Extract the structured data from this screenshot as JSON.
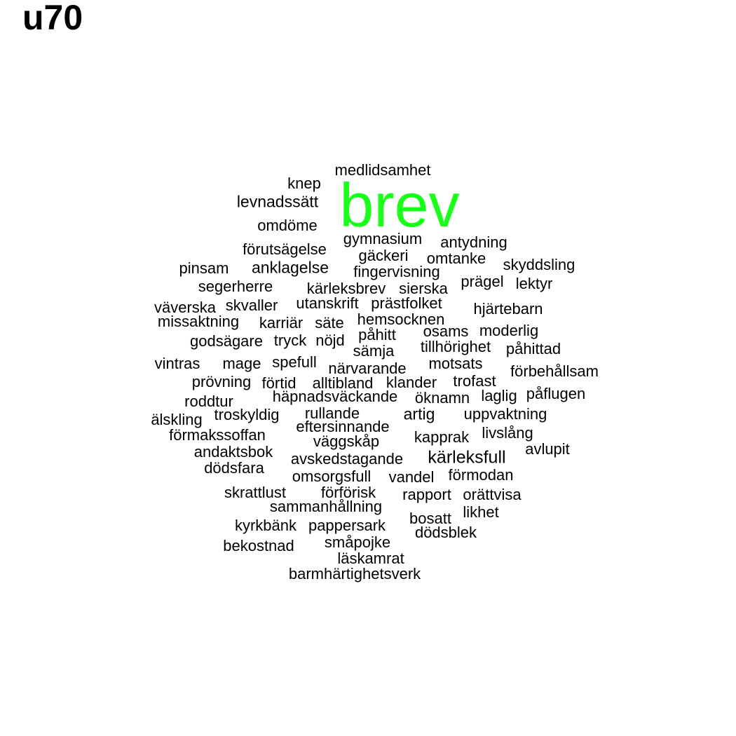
{
  "title": "u70",
  "highlight_color": "#1aff1a",
  "text_color": "#000000",
  "words": [
    {
      "text": "brev",
      "highlight": true
    },
    {
      "text": "medlidsamhet"
    },
    {
      "text": "knep"
    },
    {
      "text": "levnadssätt"
    },
    {
      "text": "omdöme"
    },
    {
      "text": "gymnasium"
    },
    {
      "text": "antydning"
    },
    {
      "text": "förutsägelse"
    },
    {
      "text": "gäckeri"
    },
    {
      "text": "omtanke"
    },
    {
      "text": "pinsam"
    },
    {
      "text": "anklagelse"
    },
    {
      "text": "fingervisning"
    },
    {
      "text": "skyddsling"
    },
    {
      "text": "segerherre"
    },
    {
      "text": "prägel"
    },
    {
      "text": "lektyr"
    },
    {
      "text": "kärleksbrev"
    },
    {
      "text": "sierska"
    },
    {
      "text": "väverska"
    },
    {
      "text": "skvaller"
    },
    {
      "text": "utanskrift"
    },
    {
      "text": "prästfolket"
    },
    {
      "text": "hjärtebarn"
    },
    {
      "text": "missaktning"
    },
    {
      "text": "karriär"
    },
    {
      "text": "säte"
    },
    {
      "text": "hemsocknen"
    },
    {
      "text": "osams"
    },
    {
      "text": "moderlig"
    },
    {
      "text": "godsägare"
    },
    {
      "text": "tryck"
    },
    {
      "text": "nöjd"
    },
    {
      "text": "påhitt"
    },
    {
      "text": "tillhörighet"
    },
    {
      "text": "påhittad"
    },
    {
      "text": "sämja"
    },
    {
      "text": "vintras"
    },
    {
      "text": "mage"
    },
    {
      "text": "spefull"
    },
    {
      "text": "närvarande"
    },
    {
      "text": "motsats"
    },
    {
      "text": "förbehållsam"
    },
    {
      "text": "prövning"
    },
    {
      "text": "förtid"
    },
    {
      "text": "alltibland"
    },
    {
      "text": "klander"
    },
    {
      "text": "trofast"
    },
    {
      "text": "häpnadsväckande"
    },
    {
      "text": "öknamn"
    },
    {
      "text": "laglig"
    },
    {
      "text": "påflugen"
    },
    {
      "text": "roddtur"
    },
    {
      "text": "troskyldig"
    },
    {
      "text": "rullande"
    },
    {
      "text": "artig"
    },
    {
      "text": "uppvaktning"
    },
    {
      "text": "älskling"
    },
    {
      "text": "eftersinnande"
    },
    {
      "text": "förmakssoffan"
    },
    {
      "text": "livslång"
    },
    {
      "text": "väggskåp"
    },
    {
      "text": "kapprak"
    },
    {
      "text": "avlupit"
    },
    {
      "text": "andaktsbok"
    },
    {
      "text": "avskedstagande"
    },
    {
      "text": "kärleksfull"
    },
    {
      "text": "dödsfara"
    },
    {
      "text": "omsorgsfull"
    },
    {
      "text": "vandel"
    },
    {
      "text": "förmodan"
    },
    {
      "text": "skrattlust"
    },
    {
      "text": "förförisk"
    },
    {
      "text": "rapport"
    },
    {
      "text": "orättvisa"
    },
    {
      "text": "sammanhållning"
    },
    {
      "text": "likhet"
    },
    {
      "text": "bosatt"
    },
    {
      "text": "kyrkbänk"
    },
    {
      "text": "pappersark"
    },
    {
      "text": "dödsblek"
    },
    {
      "text": "småpojke"
    },
    {
      "text": "bekostnad"
    },
    {
      "text": "läskamrat"
    },
    {
      "text": "barmhärtighetsverk"
    }
  ]
}
